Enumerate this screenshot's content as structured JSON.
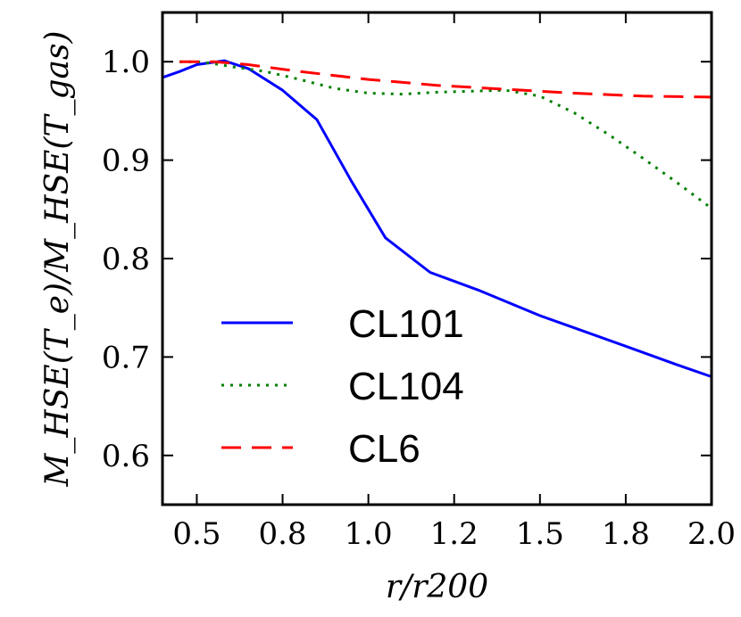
{
  "chart_data": {
    "type": "line",
    "xlabel": "r/r200",
    "ylabel": "M_HSE(T_e)/M_HSE(T_gas)",
    "xlim": [
      0.4,
      2.0
    ],
    "ylim": [
      0.55,
      1.05
    ],
    "xticks": [
      0.5,
      0.75,
      1.0,
      1.25,
      1.5,
      1.75,
      2.0
    ],
    "xtick_labels": [
      "0.5",
      "0.8",
      "1.0",
      "1.2",
      "1.5",
      "1.8",
      "2.0"
    ],
    "yticks": [
      0.6,
      0.7,
      0.8,
      0.9,
      1.0
    ],
    "ytick_labels": [
      "0.6",
      "0.7",
      "0.8",
      "0.9",
      "1.0"
    ],
    "legend_position": "lower-left",
    "series": [
      {
        "name": "CL101",
        "color": "#0000ff",
        "style": "solid",
        "x": [
          0.4,
          0.45,
          0.5,
          0.58,
          0.65,
          0.75,
          0.85,
          0.95,
          1.05,
          1.18,
          1.32,
          1.5,
          1.75,
          1.9,
          2.0
        ],
        "y": [
          0.984,
          0.99,
          0.997,
          1.001,
          0.993,
          0.971,
          0.941,
          0.879,
          0.821,
          0.786,
          0.768,
          0.742,
          0.711,
          0.692,
          0.68
        ]
      },
      {
        "name": "CL104",
        "color": "#008000",
        "style": "dotted",
        "x": [
          0.45,
          0.5,
          0.55,
          0.6,
          0.7,
          0.8,
          0.9,
          1.0,
          1.1,
          1.2,
          1.3,
          1.4,
          1.5,
          1.6,
          1.7,
          1.8,
          1.9,
          2.0
        ],
        "y": [
          1.0,
          1.0,
          0.998,
          0.995,
          0.99,
          0.982,
          0.973,
          0.968,
          0.967,
          0.969,
          0.97,
          0.971,
          0.965,
          0.948,
          0.926,
          0.902,
          0.877,
          0.851
        ]
      },
      {
        "name": "CL6",
        "color": "#ff0000",
        "style": "dashed",
        "x": [
          0.45,
          0.55,
          0.65,
          0.8,
          1.0,
          1.2,
          1.4,
          1.6,
          1.8,
          2.0
        ],
        "y": [
          1.0,
          1.0,
          0.997,
          0.99,
          0.982,
          0.976,
          0.972,
          0.968,
          0.965,
          0.964
        ]
      }
    ]
  }
}
